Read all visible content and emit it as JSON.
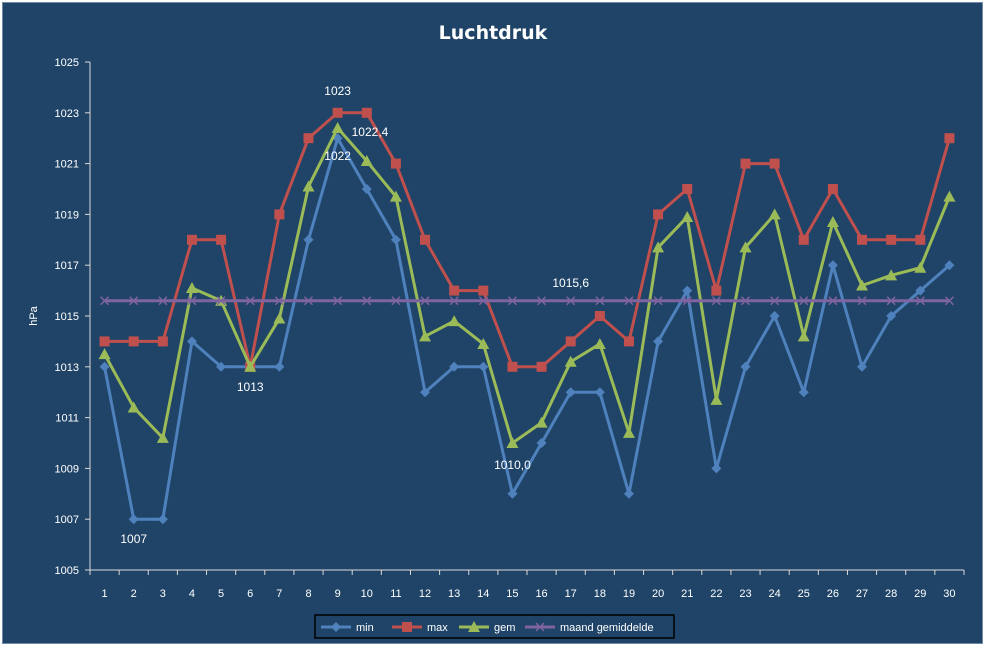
{
  "chart_data": {
    "type": "line",
    "title": "Luchtdruk",
    "ylabel": "hPa",
    "xlabel": "",
    "ylim": [
      1005,
      1025
    ],
    "yticks": [
      1005,
      1007,
      1009,
      1011,
      1013,
      1015,
      1017,
      1019,
      1021,
      1023,
      1025
    ],
    "categories": [
      "1",
      "2",
      "3",
      "4",
      "5",
      "6",
      "7",
      "8",
      "9",
      "10",
      "11",
      "12",
      "13",
      "14",
      "15",
      "16",
      "17",
      "18",
      "19",
      "20",
      "21",
      "22",
      "23",
      "24",
      "25",
      "26",
      "27",
      "28",
      "29",
      "30"
    ],
    "grid": false,
    "legend": "bottom",
    "series": [
      {
        "name": "min",
        "color": "#4f81bd",
        "marker": "diamond",
        "values": [
          1013,
          1007,
          1007,
          1014,
          1013,
          1013,
          1013,
          1018,
          1022,
          1020,
          1018,
          1012,
          1013,
          1013,
          1008,
          1010,
          1012,
          1012,
          1008,
          1014,
          1016,
          1009,
          1013,
          1015,
          1012,
          1017,
          1013,
          1015,
          1016,
          1017
        ]
      },
      {
        "name": "max",
        "color": "#c0504d",
        "marker": "square",
        "values": [
          1014,
          1014,
          1014,
          1018,
          1018,
          1013,
          1019,
          1022,
          1023,
          1023,
          1021,
          1018,
          1016,
          1016,
          1013,
          1013,
          1014,
          1015,
          1014,
          1019,
          1020,
          1016,
          1021,
          1021,
          1018,
          1020,
          1018,
          1018,
          1018,
          1022
        ]
      },
      {
        "name": "gem",
        "color": "#9bbb59",
        "marker": "triangle",
        "values": [
          1013.5,
          1011.4,
          1010.2,
          1016.1,
          1015.6,
          1013,
          1014.9,
          1020.1,
          1022.4,
          1021.1,
          1019.7,
          1014.2,
          1014.8,
          1013.9,
          1010,
          1010.8,
          1013.2,
          1013.9,
          1010.4,
          1017.7,
          1018.9,
          1011.7,
          1017.7,
          1019,
          1014.2,
          1018.7,
          1016.2,
          1016.6,
          1016.9,
          1019.7
        ]
      },
      {
        "name": "maand gemiddelde",
        "color": "#8064a2",
        "marker": "x",
        "values": [
          1015.6,
          1015.6,
          1015.6,
          1015.6,
          1015.6,
          1015.6,
          1015.6,
          1015.6,
          1015.6,
          1015.6,
          1015.6,
          1015.6,
          1015.6,
          1015.6,
          1015.6,
          1015.6,
          1015.6,
          1015.6,
          1015.6,
          1015.6,
          1015.6,
          1015.6,
          1015.6,
          1015.6,
          1015.6,
          1015.6,
          1015.6,
          1015.6,
          1015.6,
          1015.6
        ]
      }
    ],
    "annotations": [
      {
        "text": "1023",
        "series": "max",
        "x": "9"
      },
      {
        "text": "1022,4",
        "series": "gem",
        "x": "9"
      },
      {
        "text": "1022",
        "series": "min",
        "x": "9"
      },
      {
        "text": "1013",
        "series": "min",
        "x": "6"
      },
      {
        "text": "1007",
        "series": "min",
        "x": "2"
      },
      {
        "text": "1010,0",
        "series": "gem",
        "x": "15"
      },
      {
        "text": "1015,6",
        "series": "maand gemiddelde",
        "x": "17"
      }
    ]
  }
}
